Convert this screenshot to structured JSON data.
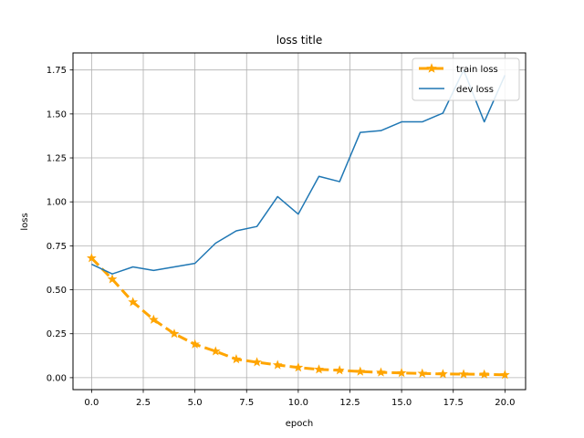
{
  "chart_data": {
    "type": "line",
    "title": "loss title",
    "xlabel": "epoch",
    "ylabel": "loss",
    "xlim": [
      -0.9,
      21.0
    ],
    "ylim": [
      -0.068,
      1.847
    ],
    "xticks": [
      0.0,
      2.5,
      5.0,
      7.5,
      10.0,
      12.5,
      15.0,
      17.5,
      20.0
    ],
    "xtick_labels": [
      "0.0",
      "2.5",
      "5.0",
      "7.5",
      "10.0",
      "12.5",
      "15.0",
      "17.5",
      "20.0"
    ],
    "yticks": [
      0.0,
      0.25,
      0.5,
      0.75,
      1.0,
      1.25,
      1.5,
      1.75
    ],
    "ytick_labels": [
      "0.00",
      "0.25",
      "0.50",
      "0.75",
      "1.00",
      "1.25",
      "1.50",
      "1.75"
    ],
    "grid": true,
    "legend_position": "top-right",
    "x": [
      0,
      1,
      2,
      3,
      4,
      5,
      6,
      7,
      8,
      9,
      10,
      11,
      12,
      13,
      14,
      15,
      16,
      17,
      18,
      19,
      20
    ],
    "series": [
      {
        "name": "train loss",
        "color": "#ffa500",
        "style": "dashed",
        "marker": "star",
        "values": [
          0.68,
          0.56,
          0.43,
          0.33,
          0.25,
          0.19,
          0.15,
          0.105,
          0.088,
          0.072,
          0.058,
          0.047,
          0.042,
          0.035,
          0.03,
          0.027,
          0.024,
          0.021,
          0.02,
          0.019,
          0.016
        ]
      },
      {
        "name": "dev loss",
        "color": "#1f77b4",
        "style": "solid",
        "marker": "none",
        "values": [
          0.645,
          0.59,
          0.63,
          0.61,
          0.63,
          0.65,
          0.765,
          0.835,
          0.86,
          1.03,
          0.93,
          1.145,
          1.115,
          1.395,
          1.405,
          1.455,
          1.455,
          1.505,
          1.75,
          1.455,
          1.72
        ]
      }
    ]
  }
}
